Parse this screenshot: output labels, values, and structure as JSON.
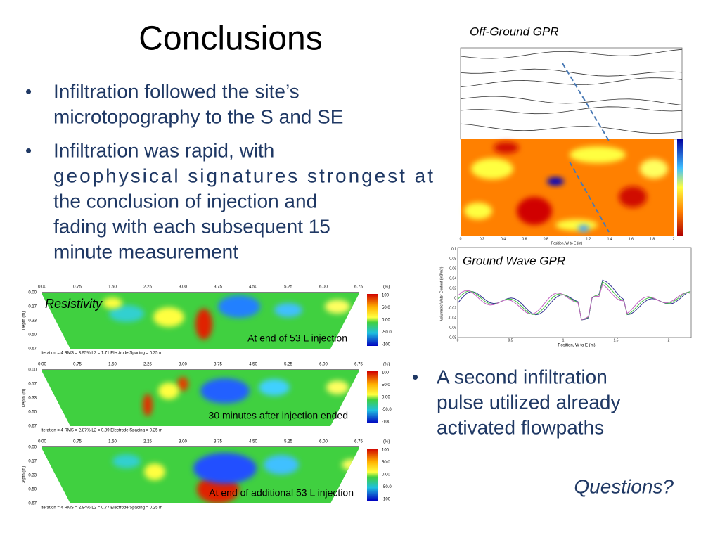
{
  "title": "Conclusions",
  "bullets": [
    [
      "Infiltration followed the site’s",
      "microtopography to the S and SE"
    ],
    [
      "Infiltration was rapid, with",
      "geophysical signatures strongest at",
      "the conclusion of injection and",
      "fading with each subsequent 15",
      "minute measurement"
    ]
  ],
  "bullet_right": [
    "A second infiltration",
    "pulse utilized already",
    "activated flowpaths"
  ],
  "questions": "Questions?",
  "resistivity": {
    "label": "Resistivity",
    "x_ticks": [
      "0.00",
      "0.75",
      "1.50",
      "2.25",
      "3.00",
      "3.75",
      "4.50",
      "5.25",
      "6.00",
      "6.75"
    ],
    "depth_ticks": [
      "0.00",
      "0.17",
      "0.33",
      "0.50",
      "0.67"
    ],
    "depth_label": "Depth (m)",
    "unit": "(%)",
    "colorbar_ticks": [
      "100",
      "50.0",
      "0.00",
      "-50.0",
      "-100"
    ],
    "panels": [
      {
        "caption": "At end of 53 L injection",
        "info": "Iteration = 4   RMS = 3.95%   L2 = 1.71   Electrode Spacing = 0.25 m"
      },
      {
        "caption": "30 minutes after injection ended",
        "info": "Iteration = 4   RMS = 2.87%   L2 = 0.89   Electrode Spacing = 0.25 m"
      },
      {
        "caption": "At end of additional 53 L injection",
        "info": "Iteration = 4   RMS = 2.84%   L2 = 0.77   Electrode Spacing = 0.25 m"
      }
    ]
  },
  "off_ground": {
    "label": "Off-Ground GPR",
    "x_label": "Position, W to E (m)",
    "x_ticks": [
      "0",
      "0.2",
      "0.4",
      "0.6",
      "0.8",
      "1",
      "1.2",
      "1.4",
      "1.6",
      "1.8",
      "2"
    ]
  },
  "ground_wave": {
    "label": "Ground Wave GPR",
    "x_label": "Position, W to E (m)",
    "y_label": "Volumetric Water Content (m3/m3)",
    "x_ticks": [
      "0",
      "0.5",
      "1",
      "1.5",
      "2"
    ],
    "y_ticks": [
      "0.1",
      "0.08",
      "0.06",
      "0.04",
      "0.02",
      "0",
      "-0.02",
      "-0.04",
      "-0.06",
      "-0.08"
    ]
  }
}
